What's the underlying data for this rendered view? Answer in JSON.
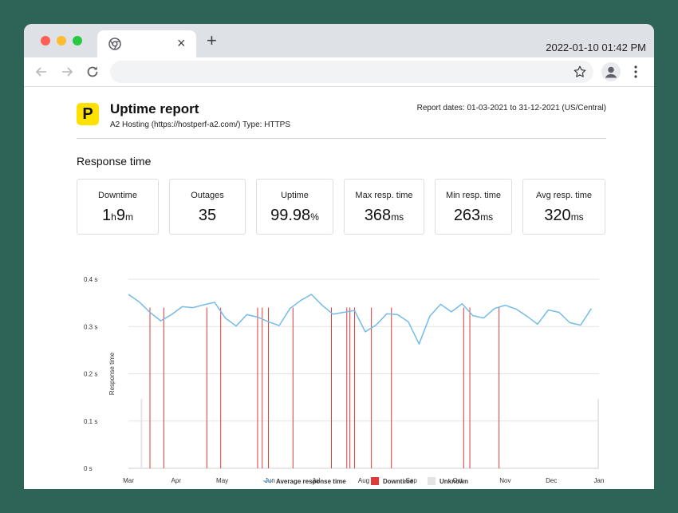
{
  "browser": {
    "clock": "2022-01-10 01:42 PM",
    "tab_close": "×",
    "new_tab": "+",
    "traffic_colors": [
      "#ff5f57",
      "#febc2e",
      "#28c840"
    ]
  },
  "report": {
    "logo_letter": "P",
    "title": "Uptime report",
    "subtitle": "A2 Hosting (https://hostperf-a2.com/) Type: HTTPS",
    "dates": "Report dates: 01-03-2021 to 31-12-2021 (US/Central)",
    "section_title": "Response time"
  },
  "cards": [
    {
      "label": "Downtime",
      "v1": "1",
      "u1": "h",
      "v2": "9",
      "u2": "m"
    },
    {
      "label": "Outages",
      "v1": "35",
      "u1": "",
      "v2": "",
      "u2": ""
    },
    {
      "label": "Uptime",
      "v1": "99.98",
      "u1": "%",
      "v2": "",
      "u2": ""
    },
    {
      "label": "Max resp. time",
      "v1": "368",
      "u1": "ms",
      "v2": "",
      "u2": ""
    },
    {
      "label": "Min resp. time",
      "v1": "263",
      "u1": "ms",
      "v2": "",
      "u2": ""
    },
    {
      "label": "Avg resp. time",
      "v1": "320",
      "u1": "ms",
      "v2": "",
      "u2": ""
    }
  ],
  "chart_data": {
    "type": "line",
    "title": "",
    "xlabel": "",
    "ylabel": "Response time",
    "ylim": [
      0,
      0.4
    ],
    "yticks": [
      0,
      0.1,
      0.2,
      0.3,
      0.4
    ],
    "ytick_labels": [
      "0 s",
      "0.1 s",
      "0.2 s",
      "0.3 s",
      "0.4 s"
    ],
    "x_start": "2021-03-01",
    "x_end": "2022-01-01",
    "x_ticks": [
      {
        "date": "2021-03-01",
        "label": "Mar"
      },
      {
        "date": "2021-04-01",
        "label": "Apr"
      },
      {
        "date": "2021-05-01",
        "label": "May"
      },
      {
        "date": "2021-06-01",
        "label": "Jun"
      },
      {
        "date": "2021-07-01",
        "label": "Jul"
      },
      {
        "date": "2021-08-01",
        "label": "Aug"
      },
      {
        "date": "2021-09-01",
        "label": "Sep"
      },
      {
        "date": "2021-10-01",
        "label": "Oct"
      },
      {
        "date": "2021-11-01",
        "label": "Nov"
      },
      {
        "date": "2021-12-01",
        "label": "Dec"
      },
      {
        "date": "2022-01-01",
        "label": "Jan"
      }
    ],
    "grid": true,
    "legend_position": "bottom",
    "legend": [
      {
        "label": "Average response time",
        "color": "#74bbe8"
      },
      {
        "label": "Downtime",
        "color": "#e03a3a"
      },
      {
        "label": "Unknown",
        "color": "#e4e4e4"
      }
    ],
    "series": [
      {
        "name": "Average response time",
        "color": "#74bbe8",
        "points": [
          [
            "2021-03-01",
            0.368
          ],
          [
            "2021-03-08",
            0.352
          ],
          [
            "2021-03-15",
            0.33
          ],
          [
            "2021-03-22",
            0.312
          ],
          [
            "2021-03-29",
            0.325
          ],
          [
            "2021-04-05",
            0.342
          ],
          [
            "2021-04-12",
            0.34
          ],
          [
            "2021-04-19",
            0.346
          ],
          [
            "2021-04-26",
            0.351
          ],
          [
            "2021-05-03",
            0.318
          ],
          [
            "2021-05-10",
            0.301
          ],
          [
            "2021-05-17",
            0.325
          ],
          [
            "2021-05-24",
            0.32
          ],
          [
            "2021-05-31",
            0.31
          ],
          [
            "2021-06-07",
            0.302
          ],
          [
            "2021-06-14",
            0.338
          ],
          [
            "2021-06-21",
            0.355
          ],
          [
            "2021-06-28",
            0.368
          ],
          [
            "2021-07-05",
            0.345
          ],
          [
            "2021-07-12",
            0.326
          ],
          [
            "2021-07-19",
            0.33
          ],
          [
            "2021-07-26",
            0.334
          ],
          [
            "2021-08-02",
            0.289
          ],
          [
            "2021-08-09",
            0.303
          ],
          [
            "2021-08-16",
            0.327
          ],
          [
            "2021-08-23",
            0.325
          ],
          [
            "2021-08-30",
            0.31
          ],
          [
            "2021-09-06",
            0.263
          ],
          [
            "2021-09-13",
            0.322
          ],
          [
            "2021-09-20",
            0.347
          ],
          [
            "2021-09-27",
            0.331
          ],
          [
            "2021-10-04",
            0.348
          ],
          [
            "2021-10-11",
            0.323
          ],
          [
            "2021-10-18",
            0.318
          ],
          [
            "2021-10-25",
            0.338
          ],
          [
            "2021-11-01",
            0.345
          ],
          [
            "2021-11-08",
            0.337
          ],
          [
            "2021-11-15",
            0.322
          ],
          [
            "2021-11-22",
            0.305
          ],
          [
            "2021-11-29",
            0.335
          ],
          [
            "2021-12-06",
            0.33
          ],
          [
            "2021-12-13",
            0.308
          ],
          [
            "2021-12-20",
            0.303
          ],
          [
            "2021-12-27",
            0.338
          ]
        ]
      },
      {
        "name": "Downtime",
        "color": "#e03a3a",
        "dates": [
          "2021-03-15",
          "2021-03-24",
          "2021-04-21",
          "2021-04-30",
          "2021-05-24",
          "2021-05-27",
          "2021-05-31",
          "2021-06-16",
          "2021-07-11",
          "2021-07-21",
          "2021-07-23",
          "2021-07-26",
          "2021-08-06",
          "2021-08-19",
          "2021-10-05",
          "2021-10-09",
          "2021-10-28"
        ]
      },
      {
        "name": "Unknown",
        "color": "#e4e4e4",
        "ranges": [
          [
            "2021-03-09",
            "2021-03-10"
          ],
          [
            "2021-12-31",
            "2022-01-01"
          ]
        ]
      }
    ]
  }
}
